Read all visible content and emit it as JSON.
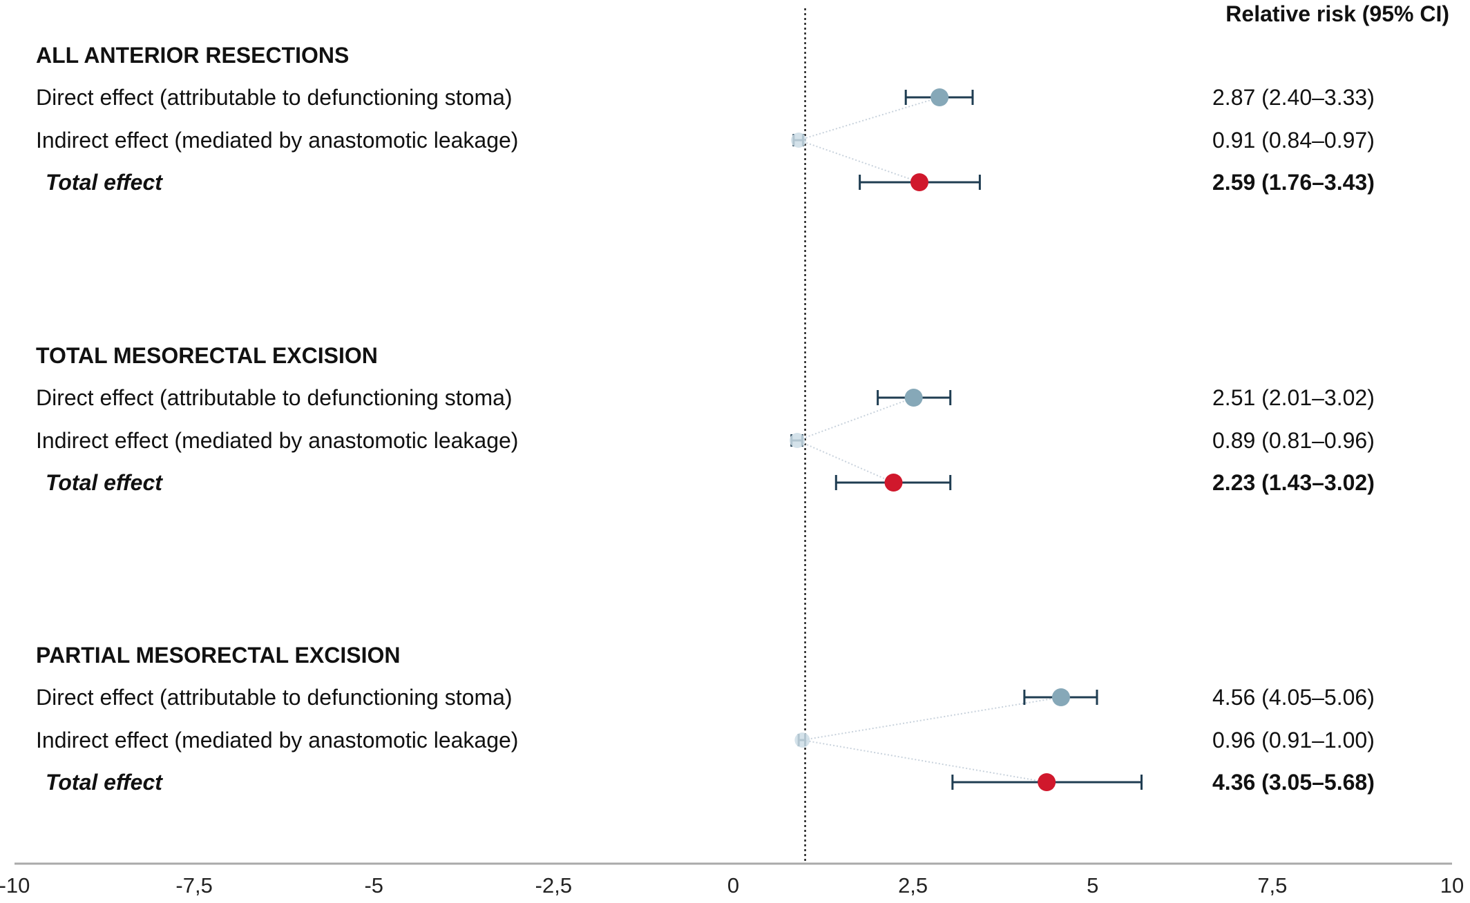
{
  "chart_data": {
    "type": "forest",
    "ci_header": "Relative risk (95% CI)",
    "xlim": [
      -10,
      10
    ],
    "x_ticks": [
      -10,
      -7.5,
      -5,
      -2.5,
      0,
      2.5,
      5,
      7.5,
      10
    ],
    "x_tick_labels": [
      "-10",
      "-7,5",
      "-5",
      "-2,5",
      "0",
      "2,5",
      "5",
      "7,5",
      "10"
    ],
    "reference_line": 1,
    "colors": {
      "direct": "#86a8b8",
      "indirect": "#cddde6",
      "total": "#d0182c",
      "ci": "#1f3d52",
      "axis": "#aaaaaa"
    },
    "groups": [
      {
        "title": "ALL ANTERIOR RESECTIONS",
        "rows": [
          {
            "kind": "direct",
            "label": "Direct effect (attributable to defunctioning stoma)",
            "estimate": 2.87,
            "lower": 2.4,
            "upper": 3.33,
            "value_text": "2.87 (2.40–3.33)"
          },
          {
            "kind": "indirect",
            "label": "Indirect effect (mediated by anastomotic leakage)",
            "estimate": 0.91,
            "lower": 0.84,
            "upper": 0.97,
            "value_text": "0.91 (0.84–0.97)"
          },
          {
            "kind": "total",
            "label": "Total effect",
            "estimate": 2.59,
            "lower": 1.76,
            "upper": 3.43,
            "value_text": "2.59 (1.76–3.43)"
          }
        ]
      },
      {
        "title": "TOTAL MESORECTAL EXCISION",
        "rows": [
          {
            "kind": "direct",
            "label": "Direct effect (attributable to defunctioning stoma)",
            "estimate": 2.51,
            "lower": 2.01,
            "upper": 3.02,
            "value_text": "2.51 (2.01–3.02)"
          },
          {
            "kind": "indirect",
            "label": "Indirect effect (mediated by anastomotic leakage)",
            "estimate": 0.89,
            "lower": 0.81,
            "upper": 0.96,
            "value_text": "0.89 (0.81–0.96)"
          },
          {
            "kind": "total",
            "label": "Total effect",
            "estimate": 2.23,
            "lower": 1.43,
            "upper": 3.02,
            "value_text": "2.23 (1.43–3.02)"
          }
        ]
      },
      {
        "title": "PARTIAL MESORECTAL EXCISION",
        "rows": [
          {
            "kind": "direct",
            "label": "Direct effect (attributable to defunctioning stoma)",
            "estimate": 4.56,
            "lower": 4.05,
            "upper": 5.06,
            "value_text": "4.56 (4.05–5.06)"
          },
          {
            "kind": "indirect",
            "label": "Indirect effect (mediated by anastomotic leakage)",
            "estimate": 0.96,
            "lower": 0.91,
            "upper": 1.0,
            "value_text": "0.96 (0.91–1.00)"
          },
          {
            "kind": "total",
            "label": "Total effect",
            "estimate": 4.36,
            "lower": 3.05,
            "upper": 5.68,
            "value_text": "4.36 (3.05–5.68)"
          }
        ]
      }
    ]
  }
}
